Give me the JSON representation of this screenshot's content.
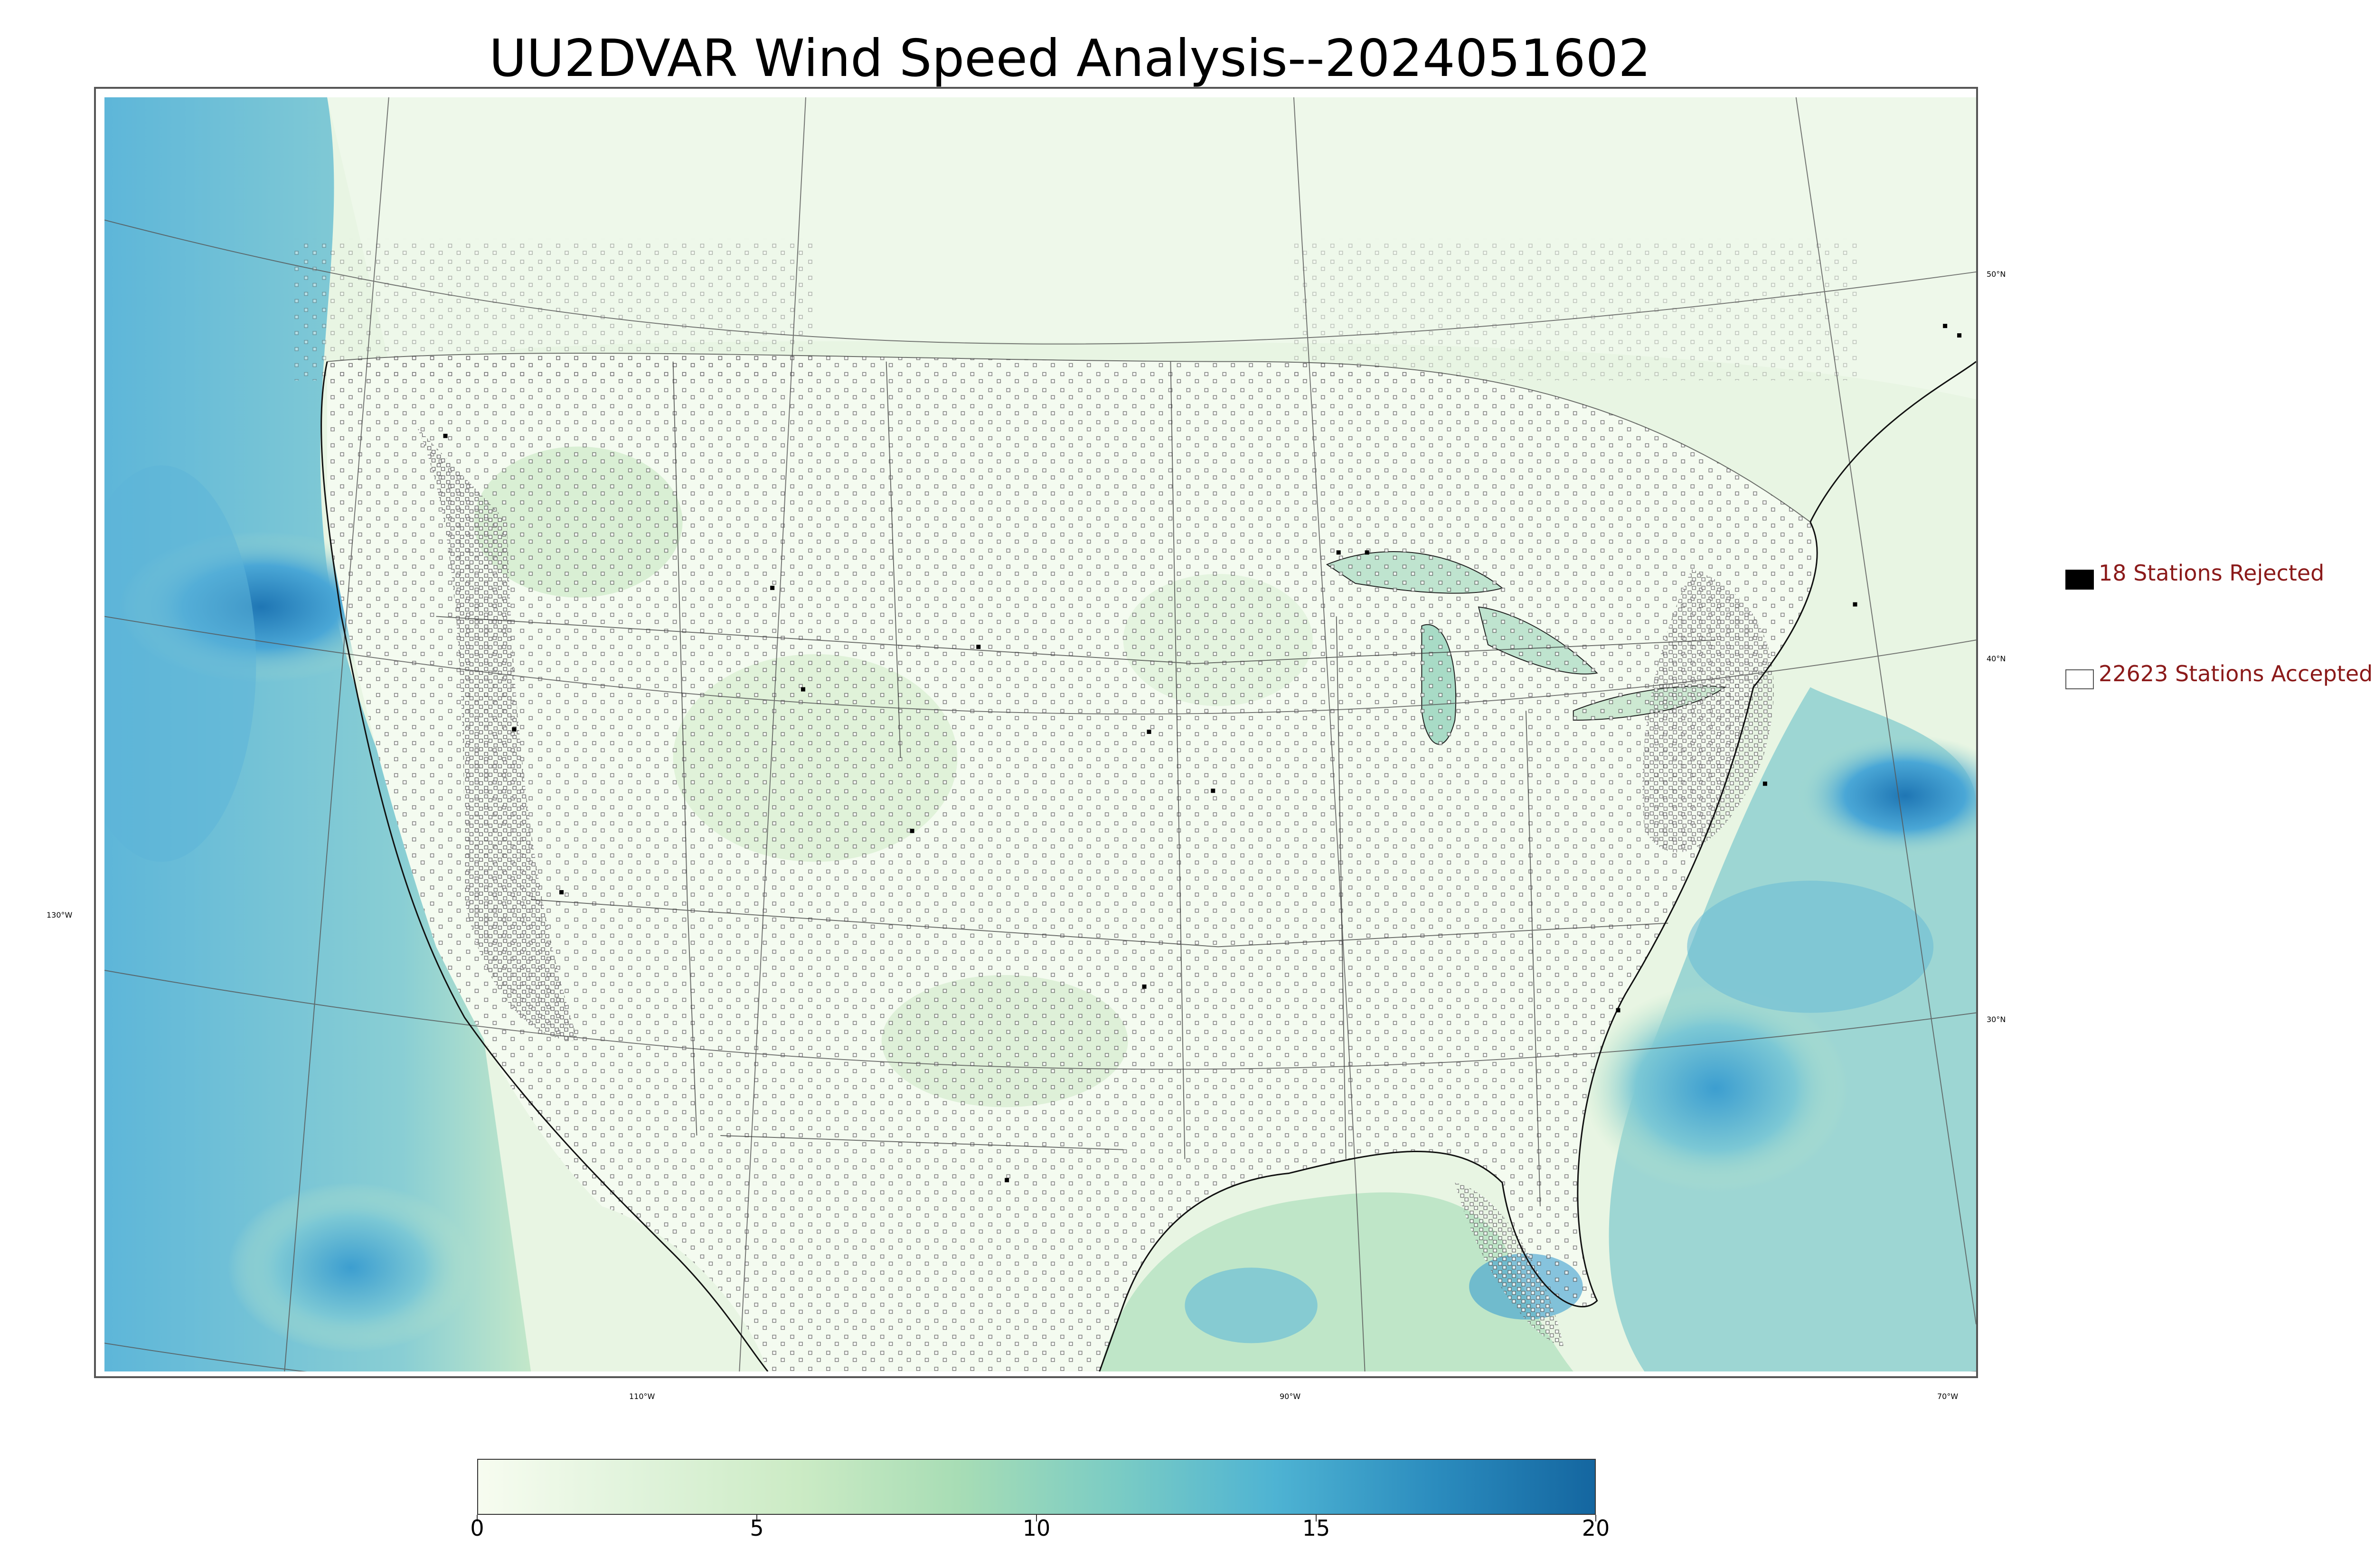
{
  "title": "UU2DVAR Wind Speed Analysis--2024051602",
  "graticule_labels": {
    "lat_50": "50°N",
    "lat_40": "40°N",
    "lat_30": "30°N",
    "lon_130": "130°W",
    "lon_110": "110°W",
    "lon_90": "90°W",
    "lon_70": "70°W"
  },
  "legend": {
    "rejected": {
      "label": "18 Stations Rejected",
      "count": 18,
      "color": "#000000"
    },
    "accepted": {
      "label": "22623 Stations Accepted",
      "count": 22623,
      "color": "#ffffff"
    },
    "text_color": "#8b1a1a"
  },
  "colorbar": {
    "min": 0,
    "max": 20,
    "ticks": [
      "0",
      "5",
      "10",
      "15",
      "20"
    ],
    "colors": [
      "#f7fcf0",
      "#e0f3db",
      "#ccebc5",
      "#a8ddb5",
      "#7bccc4",
      "#4eb3d3",
      "#2b8cbe",
      "#1466a0"
    ]
  },
  "colors": {
    "land_light": "#f3faef",
    "land_green": "#d7efd0",
    "ocean_calm": "#cfeccc",
    "ocean_blue": "#5fb4d8",
    "ocean_dark": "#2a86c0",
    "border": "#555555"
  }
}
